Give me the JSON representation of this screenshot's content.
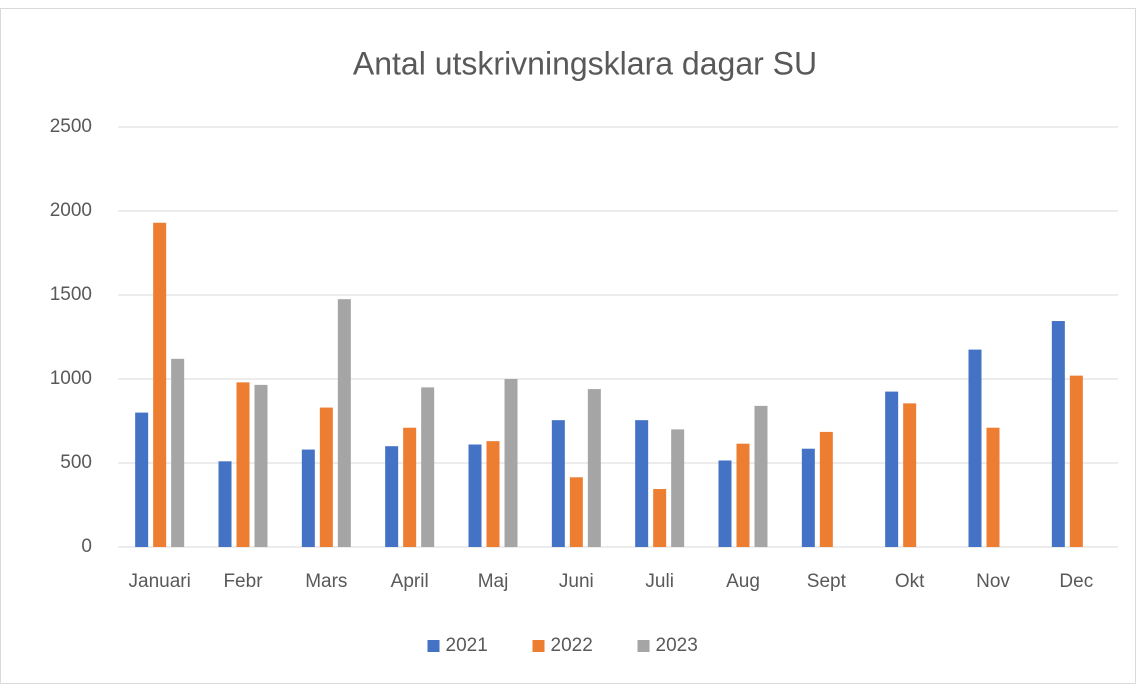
{
  "chart_data": {
    "type": "bar",
    "title": "Antal utskrivningsklara dagar SU",
    "categories": [
      "Januari",
      "Febr",
      "Mars",
      "April",
      "Maj",
      "Juni",
      "Juli",
      "Aug",
      "Sept",
      "Okt",
      "Nov",
      "Dec"
    ],
    "series": [
      {
        "name": "2021",
        "color": "#4472c4",
        "values": [
          800,
          510,
          580,
          600,
          610,
          755,
          755,
          515,
          585,
          925,
          1175,
          1345
        ]
      },
      {
        "name": "2022",
        "color": "#ed7d31",
        "values": [
          1930,
          980,
          830,
          710,
          630,
          415,
          345,
          615,
          685,
          855,
          710,
          1020
        ]
      },
      {
        "name": "2023",
        "color": "#a5a5a5",
        "values": [
          1120,
          965,
          1475,
          950,
          1000,
          940,
          700,
          840,
          null,
          null,
          null,
          null
        ]
      }
    ],
    "ylim": [
      0,
      2500
    ],
    "yticks": [
      0,
      500,
      1000,
      1500,
      2000,
      2500
    ],
    "grid": true,
    "legend": "bottom"
  }
}
